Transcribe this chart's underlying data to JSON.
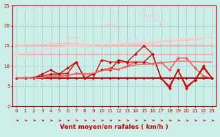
{
  "x": [
    0,
    1,
    2,
    3,
    4,
    5,
    6,
    7,
    8,
    9,
    10,
    11,
    12,
    13,
    14,
    15,
    16,
    17,
    18,
    19,
    20,
    21,
    22,
    23
  ],
  "background_color": "#cceee8",
  "grid_color": "#aad4ce",
  "xlabel": "Vent moyen/en rafales ( km/h )",
  "ylim": [
    0,
    25
  ],
  "xlim": [
    -0.5,
    23.5
  ],
  "yticks": [
    0,
    5,
    10,
    15,
    20,
    25
  ],
  "lines": [
    {
      "y": [
        13,
        13,
        13,
        13,
        13,
        13,
        13,
        13,
        13,
        13,
        13,
        13,
        13,
        13,
        13,
        13,
        13,
        13,
        13,
        13,
        13,
        13,
        13,
        13
      ],
      "color": "#ffaaaa",
      "lw": 1.0,
      "marker": "D",
      "ms": 2.0,
      "linestyle": "-"
    },
    {
      "y": [
        15.2,
        15.2,
        15.2,
        15.2,
        15.2,
        15.2,
        15.2,
        15.2,
        15.2,
        15.2,
        15.2,
        15.2,
        15.2,
        15.2,
        15.2,
        15.2,
        15.2,
        15.2,
        15.2,
        15.2,
        15.2,
        15.2,
        15.2,
        15.2
      ],
      "color": "#ffaaaa",
      "lw": 1.0,
      "marker": "D",
      "ms": 2.0,
      "linestyle": "-"
    },
    {
      "y": [
        15,
        15.1,
        15.2,
        15.3,
        15.5,
        15.6,
        15.7,
        15.5,
        15.4,
        15.3,
        15.3,
        15.3,
        15.4,
        15.4,
        15.5,
        15.5,
        15.6,
        16.0,
        16.2,
        16.3,
        16.4,
        16.6,
        16.9,
        17.0
      ],
      "color": "#ffbbbb",
      "lw": 1.0,
      "marker": "D",
      "ms": 2.0,
      "linestyle": "-"
    },
    {
      "y": [
        13.0,
        13.2,
        13.5,
        13.9,
        14.3,
        14.7,
        15.0,
        15.0,
        15.1,
        15.2,
        15.3,
        15.4,
        15.5,
        15.6,
        15.8,
        15.9,
        16.0,
        16.2,
        16.5,
        16.7,
        16.8,
        16.9,
        17.0,
        17.0
      ],
      "color": "#ffcccc",
      "lw": 1.0,
      "marker": "D",
      "ms": 2.0,
      "linestyle": "-"
    },
    {
      "y": [
        null,
        null,
        null,
        null,
        null,
        null,
        17.2,
        17.0,
        null,
        null,
        19.5,
        20.5,
        19.5,
        null,
        null,
        22.5,
        22.5,
        20.5,
        null,
        null,
        null,
        null,
        null,
        null
      ],
      "color": "#ffbbbb",
      "lw": 0.8,
      "marker": "D",
      "ms": 2.0,
      "linestyle": "--"
    },
    {
      "y": [
        7.0,
        7.0,
        7.0,
        7.0,
        7.0,
        7.0,
        7.0,
        7.0,
        7.0,
        7.0,
        7.0,
        7.0,
        7.0,
        7.0,
        7.0,
        7.0,
        7.0,
        7.0,
        7.0,
        7.0,
        7.0,
        7.0,
        7.0,
        7.0
      ],
      "color": "#cc0000",
      "lw": 1.5,
      "marker": "D",
      "ms": 2.0,
      "linestyle": "-"
    },
    {
      "y": [
        7.0,
        7.1,
        7.0,
        7.1,
        7.5,
        7.5,
        7.6,
        8.2,
        8.0,
        8.0,
        9.0,
        9.5,
        9.2,
        10.0,
        11.0,
        11.0,
        10.5,
        11.0,
        9.0,
        12.0,
        12.0,
        9.5,
        7.5,
        7.0
      ],
      "color": "#ff4444",
      "lw": 1.0,
      "marker": "D",
      "ms": 2.0,
      "linestyle": "-"
    },
    {
      "y": [
        7.0,
        7.0,
        7.2,
        7.5,
        8.0,
        8.0,
        8.2,
        11.0,
        7.0,
        7.0,
        11.5,
        11.0,
        11.0,
        11.0,
        13.0,
        15.0,
        13.0,
        7.0,
        4.5,
        9.0,
        4.5,
        6.5,
        9.5,
        7.0
      ],
      "color": "#dd0000",
      "lw": 1.0,
      "marker": "D",
      "ms": 2.0,
      "linestyle": "-"
    },
    {
      "y": [
        7.0,
        7.0,
        7.0,
        8.0,
        9.0,
        8.0,
        9.5,
        11.0,
        7.0,
        8.0,
        9.0,
        9.0,
        11.5,
        11.0,
        11.0,
        11.0,
        13.0,
        7.0,
        5.0,
        9.0,
        5.0,
        6.5,
        10.0,
        7.0
      ],
      "color": "#cc0000",
      "lw": 1.0,
      "marker": "D",
      "ms": 2.0,
      "linestyle": "-"
    },
    {
      "y": [
        7.0,
        7.0,
        7.0,
        7.2,
        7.5,
        7.5,
        7.8,
        8.0,
        8.0,
        8.2,
        8.8,
        9.2,
        9.2,
        9.8,
        10.3,
        10.4,
        10.5,
        10.8,
        11.0,
        11.2,
        11.2,
        11.1,
        11.0,
        11.0
      ],
      "color": "#ff6666",
      "lw": 1.2,
      "marker": null,
      "ms": 0,
      "linestyle": "-"
    }
  ],
  "tick_color": "#cc0000",
  "tick_fontsize": 5.0,
  "xlabel_fontsize": 6.5,
  "xlabel_color": "#cc0000"
}
